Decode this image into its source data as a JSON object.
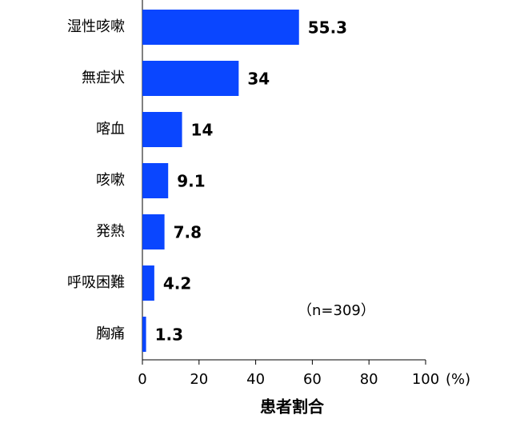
{
  "chart_data": {
    "type": "bar",
    "orientation": "horizontal",
    "categories": [
      "湿性咳嗽",
      "無症状",
      "喀血",
      "咳嗽",
      "発熱",
      "呼吸困難",
      "胸痛"
    ],
    "values": [
      55.3,
      34,
      14,
      9.1,
      7.8,
      4.2,
      1.3
    ],
    "color": "#0a46ff",
    "xlim": [
      0,
      100
    ],
    "xticks": [
      0,
      20,
      40,
      60,
      80,
      100
    ],
    "x_unit": "(%)",
    "xlabel": "患者割合",
    "annotation": "（n=309）"
  }
}
